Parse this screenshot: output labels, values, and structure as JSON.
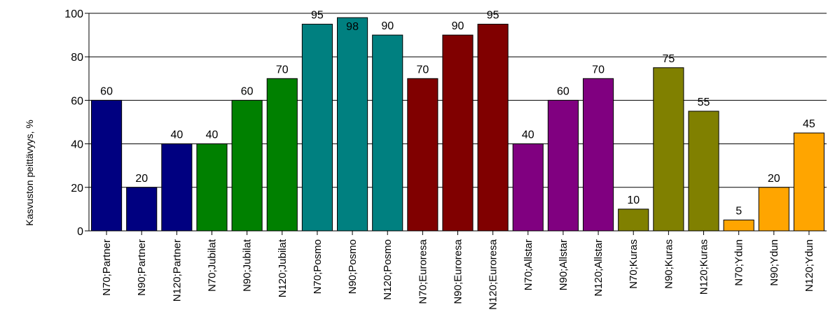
{
  "chart_data": {
    "type": "bar",
    "title": "",
    "xlabel": "",
    "ylabel": "Kasvuston peittävyys, %",
    "ylim": [
      0,
      100
    ],
    "yticks": [
      0,
      20,
      40,
      60,
      80,
      100
    ],
    "grid": true,
    "legend": "none",
    "categories": [
      "N70;Partner",
      "N90;Partner",
      "N120;Partner",
      "N70;Jubilat",
      "N90;Jubilat",
      "N120;Jubilat",
      "N70;Posmo",
      "N90;Posmo",
      "N120;Posmo",
      "N70;Euroresa",
      "N90;Euroresa",
      "N120;Euroresa",
      "N70;Allstar",
      "N90;Allstar",
      "N120;Allstar",
      "N70;Kuras",
      "N90;Kuras",
      "N120;Kuras",
      "N70;Ydun",
      "N90;Ydun",
      "N120;Ydun"
    ],
    "values": [
      60,
      20,
      40,
      40,
      60,
      70,
      95,
      98,
      90,
      70,
      90,
      95,
      40,
      60,
      70,
      10,
      75,
      55,
      5,
      20,
      45
    ],
    "colors": [
      "#000080",
      "#000080",
      "#000080",
      "#008000",
      "#008000",
      "#008000",
      "#008080",
      "#008080",
      "#008080",
      "#800000",
      "#800000",
      "#800000",
      "#800080",
      "#800080",
      "#800080",
      "#808000",
      "#808000",
      "#808000",
      "#FFA500",
      "#FFA500",
      "#FFA500"
    ]
  }
}
